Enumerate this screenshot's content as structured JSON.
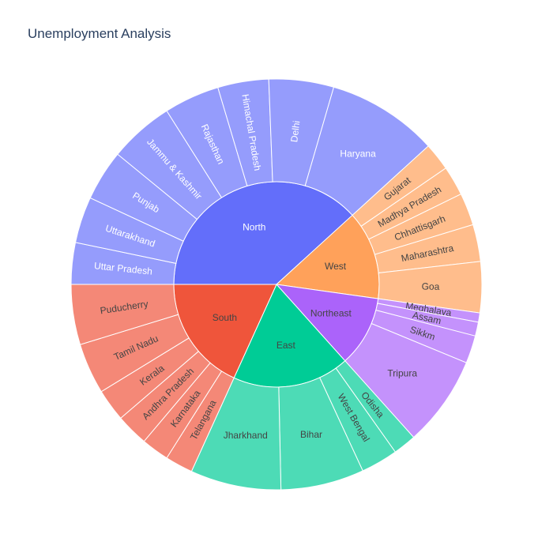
{
  "chart_data": {
    "type": "sunburst",
    "title": "Unemployment Analysis",
    "regions": [
      {
        "name": "North",
        "color": "#636efa",
        "child_color": "#959cfc",
        "text_color": "#ffffff",
        "states": [
          {
            "name": "Uttar Pradesh",
            "value": 4.5
          },
          {
            "name": "Uttarakhand",
            "value": 5.0
          },
          {
            "name": "Punjab",
            "value": 5.5
          },
          {
            "name": "Jammu & Kashmir",
            "value": 7.0
          },
          {
            "name": "Rajasthan",
            "value": 6.0
          },
          {
            "name": "Himachal Pradesh",
            "value": 5.5
          },
          {
            "name": "Delhi",
            "value": 7.0
          },
          {
            "name": "Haryana",
            "value": 12.0
          }
        ]
      },
      {
        "name": "West",
        "color": "#ffa15a",
        "child_color": "#ffbd8c",
        "text_color": "#444444",
        "states": [
          {
            "name": "Gujarat",
            "value": 3.0
          },
          {
            "name": "Madhya Pradesh",
            "value": 3.2
          },
          {
            "name": "Chhattisgarh",
            "value": 3.5
          },
          {
            "name": "Maharashtra",
            "value": 4.0
          },
          {
            "name": "Goa",
            "value": 5.5
          }
        ]
      },
      {
        "name": "Northeast",
        "color": "#ab63fa",
        "child_color": "#c492fc",
        "text_color": "#444444",
        "states": [
          {
            "name": "Meghalaya",
            "value": 1.0
          },
          {
            "name": "Assam",
            "value": 1.5
          },
          {
            "name": "Sikkm",
            "value": 3.0
          },
          {
            "name": "Tripura",
            "value": 9.8
          }
        ]
      },
      {
        "name": "East",
        "color": "#00cc96",
        "child_color": "#4ddbb6",
        "text_color": "#444444",
        "states": [
          {
            "name": "Odisha",
            "value": 2.5
          },
          {
            "name": "West Bengal",
            "value": 4.0
          },
          {
            "name": "Bihar",
            "value": 9.0
          },
          {
            "name": "Jharkhand",
            "value": 9.8
          }
        ]
      },
      {
        "name": "South",
        "color": "#ef553b",
        "child_color": "#f48877",
        "text_color": "#444444",
        "states": [
          {
            "name": "Telangana",
            "value": 3.0
          },
          {
            "name": "Karnataka",
            "value": 3.0
          },
          {
            "name": "Andhra Pradesh",
            "value": 3.5
          },
          {
            "name": "Kerala",
            "value": 3.5
          },
          {
            "name": "Tamil Nadu",
            "value": 5.5
          },
          {
            "name": "Puducherry",
            "value": 6.5
          }
        ]
      }
    ]
  }
}
